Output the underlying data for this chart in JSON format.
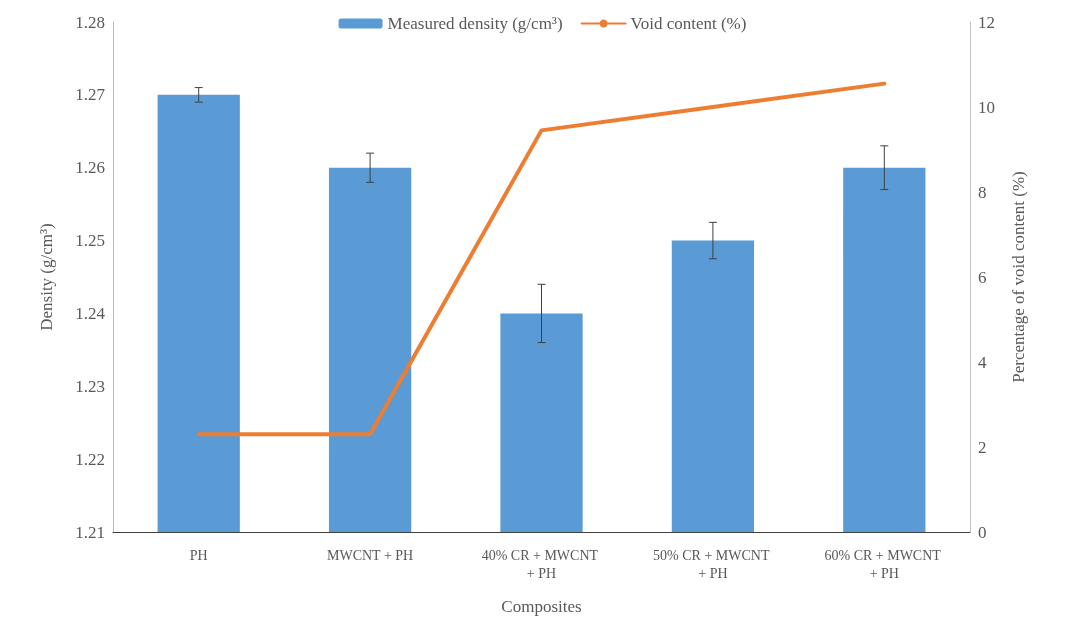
{
  "chart_data": {
    "type": "bar",
    "xlabel": "Composites",
    "ylabel": "Density (g/cm³)",
    "y2label": "Percentage of void content (%)",
    "categories": [
      "PH",
      "MWCNT + PH",
      "40% CR + MWCNT + PH",
      "50% CR + MWCNT + PH",
      "60% CR + MWCNT + PH"
    ],
    "series": [
      {
        "name": "Measured density (g/cm³)",
        "color": "#5b9bd5",
        "values": [
          1.27,
          1.26,
          1.24,
          1.25,
          1.26
        ],
        "errors": [
          0.001,
          0.002,
          0.004,
          0.0025,
          0.003
        ]
      },
      {
        "name": "Void content (%)",
        "type": "line",
        "axis": "y2",
        "color": "#ed7d31",
        "values": [
          2.3,
          2.3,
          9.45,
          10.0,
          10.55
        ]
      }
    ],
    "ylim": [
      1.21,
      1.28
    ],
    "yticks": [
      1.21,
      1.22,
      1.23,
      1.24,
      1.25,
      1.26,
      1.27,
      1.28
    ],
    "y2lim": [
      0,
      12
    ],
    "y2ticks": [
      0,
      2,
      4,
      6,
      8,
      10,
      12
    ],
    "grid": false,
    "legend": "top",
    "marker": "none",
    "line_style": "solid"
  }
}
